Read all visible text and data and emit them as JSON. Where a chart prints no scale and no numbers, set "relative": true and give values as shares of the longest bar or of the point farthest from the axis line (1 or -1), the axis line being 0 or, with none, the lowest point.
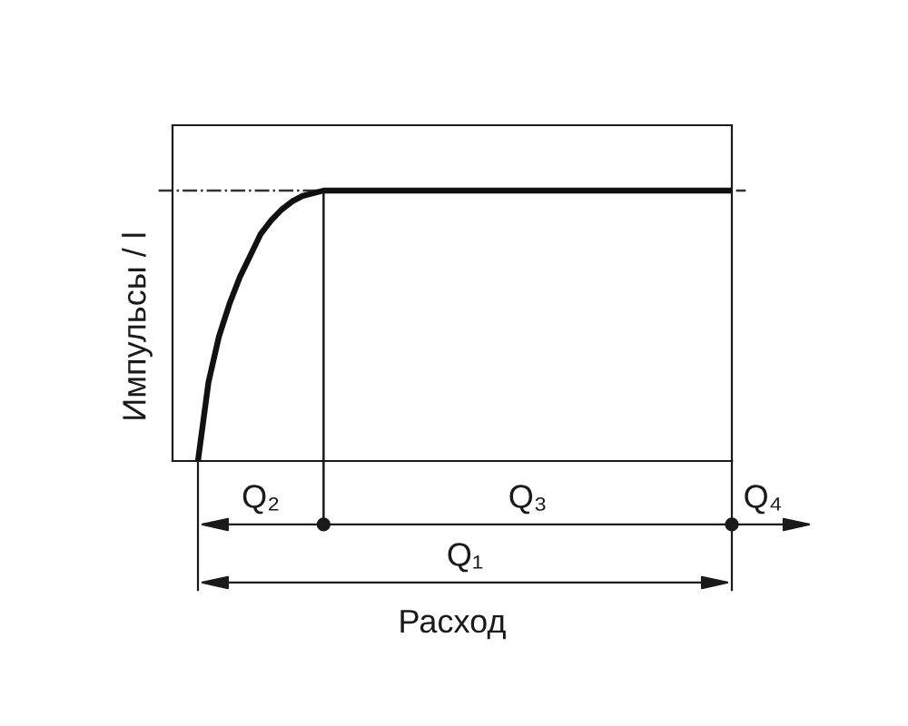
{
  "chart_data": {
    "type": "line",
    "relative": true,
    "xlabel": "Расход",
    "ylabel": "Импульсы / l",
    "categories": [
      null,
      null,
      null,
      null,
      null,
      null,
      null,
      null,
      null,
      null,
      null,
      null,
      null,
      null,
      null,
      null,
      null,
      null,
      null,
      null,
      null,
      null,
      null,
      null,
      null,
      null,
      null,
      null,
      null,
      null,
      null,
      null,
      null,
      null,
      null,
      null,
      null,
      null,
      null,
      null,
      null,
      null,
      null,
      null,
      null,
      null,
      null,
      null,
      null,
      null,
      null,
      null
    ],
    "values": [
      0,
      0.29,
      0.46,
      0.58,
      0.68,
      0.76,
      0.84,
      0.89,
      0.93,
      0.96,
      0.98,
      0.99,
      1,
      1,
      1,
      1,
      1,
      1,
      1,
      1,
      1,
      1,
      1,
      1,
      1,
      1,
      1,
      1,
      1,
      1,
      1,
      1,
      1,
      1,
      1,
      1,
      1,
      1,
      1,
      1,
      1,
      1,
      1,
      1,
      1,
      1,
      1,
      1,
      1,
      1,
      1,
      1
    ],
    "color": "#111111",
    "line_style": "solid",
    "ref_lines": [
      {
        "axis": "y",
        "value": 1,
        "color": "#333333",
        "line_style": "dashdot"
      }
    ],
    "annotations": [
      "Q₂",
      "Q₃",
      "Q₄",
      "Q₁"
    ]
  }
}
